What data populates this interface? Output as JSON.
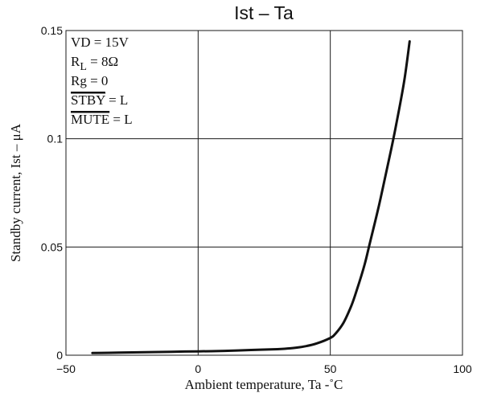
{
  "chart_data": {
    "type": "line",
    "title": "Ist  –  Ta",
    "xlabel": "Ambient temperature, Ta  -˚C",
    "ylabel": "Standby current, Ist  –  μA",
    "xlim": [
      -50,
      100
    ],
    "ylim": [
      0,
      0.15
    ],
    "x_ticks": [
      -50,
      0,
      50,
      100
    ],
    "x_tick_labels": [
      "−50",
      "0",
      "50",
      "100"
    ],
    "y_ticks": [
      0,
      0.05,
      0.1,
      0.15
    ],
    "y_tick_labels": [
      "0",
      "0.05",
      "0.1",
      "0.15"
    ],
    "grid": true,
    "conditions": [
      {
        "name": "vd",
        "text": "VD = 15V"
      },
      {
        "name": "rl",
        "main": "R",
        "sub": "L",
        "rest": " = 8Ω"
      },
      {
        "name": "rg",
        "text": "Rg = 0"
      },
      {
        "name": "stby",
        "over": "STBY",
        "rest": " = L"
      },
      {
        "name": "mute",
        "over": "MUTE",
        "rest": " = L"
      }
    ],
    "series": [
      {
        "x": [
          -40,
          -30,
          -20,
          -10,
          0,
          10,
          20,
          30,
          35,
          40,
          45,
          50,
          52,
          55,
          58,
          60,
          63,
          65,
          68,
          70,
          73,
          75,
          78,
          80
        ],
        "y": [
          0.001,
          0.0012,
          0.0014,
          0.0016,
          0.0018,
          0.002,
          0.0024,
          0.0028,
          0.0032,
          0.004,
          0.0055,
          0.008,
          0.01,
          0.015,
          0.023,
          0.03,
          0.042,
          0.052,
          0.067,
          0.078,
          0.095,
          0.107,
          0.127,
          0.145
        ]
      }
    ]
  }
}
